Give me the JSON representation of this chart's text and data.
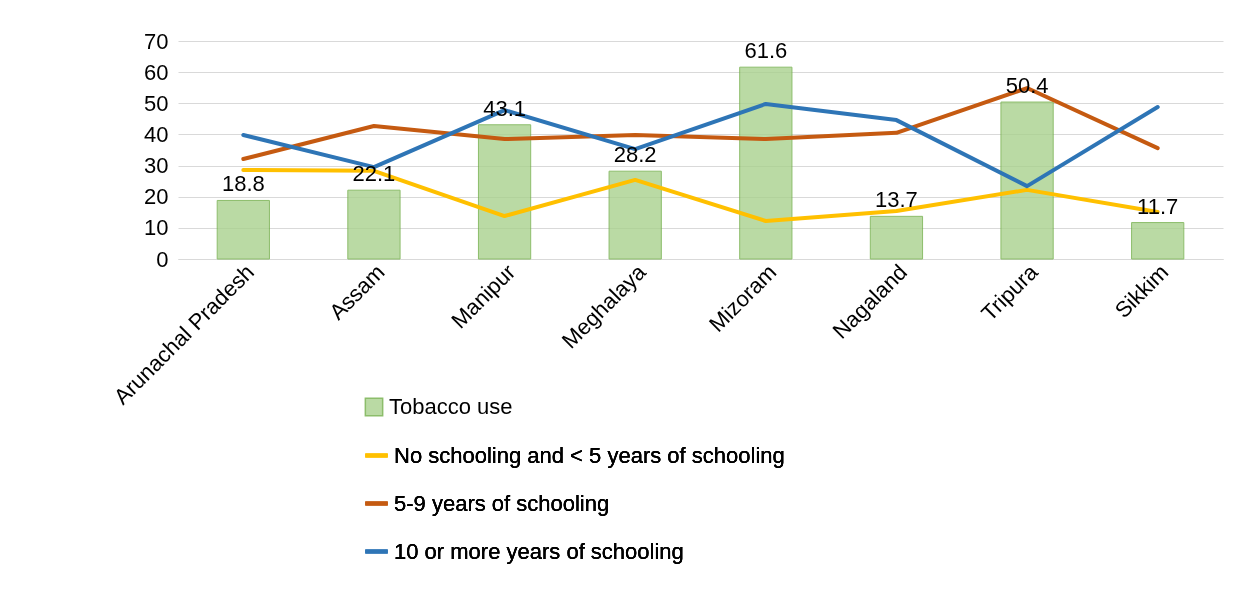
{
  "chart_data": {
    "type": "bar",
    "categories": [
      "Arunachal Pradesh",
      "Assam",
      "Manipur",
      "Meghalaya",
      "Mizoram",
      "Nagaland",
      "Tripura",
      "Sikkim"
    ],
    "series": [
      {
        "name": "Tobacco use",
        "type": "bar",
        "color": "#a9d18e",
        "values": [
          18.8,
          22.1,
          43.1,
          28.2,
          61.6,
          13.7,
          50.4,
          11.7
        ],
        "value_labels": [
          "18.8",
          "22.1",
          "43.1",
          "28.2",
          "61.6",
          "13.7",
          "50.4",
          "11.7"
        ]
      },
      {
        "name": "No schooling and < 5 years of schooling",
        "type": "line",
        "color": "#ffc000",
        "values": [
          28.6,
          28.3,
          13.8,
          25.4,
          12.2,
          15.4,
          22.2,
          15.1
        ]
      },
      {
        "name": "5-9 years of schooling",
        "type": "line",
        "color": "#c55a11",
        "values": [
          32.1,
          42.7,
          38.5,
          39.8,
          38.5,
          40.5,
          54.9,
          35.6
        ]
      },
      {
        "name": "10 or more years of schooling",
        "type": "line",
        "color": "#2e75b6",
        "values": [
          39.8,
          29.5,
          47.8,
          35.3,
          49.8,
          44.6,
          23.4,
          48.8
        ]
      }
    ],
    "ylim": [
      0,
      70
    ],
    "yticks": [
      0,
      10,
      20,
      30,
      40,
      50,
      60,
      70
    ],
    "grid": "y",
    "legend": "bottom"
  }
}
